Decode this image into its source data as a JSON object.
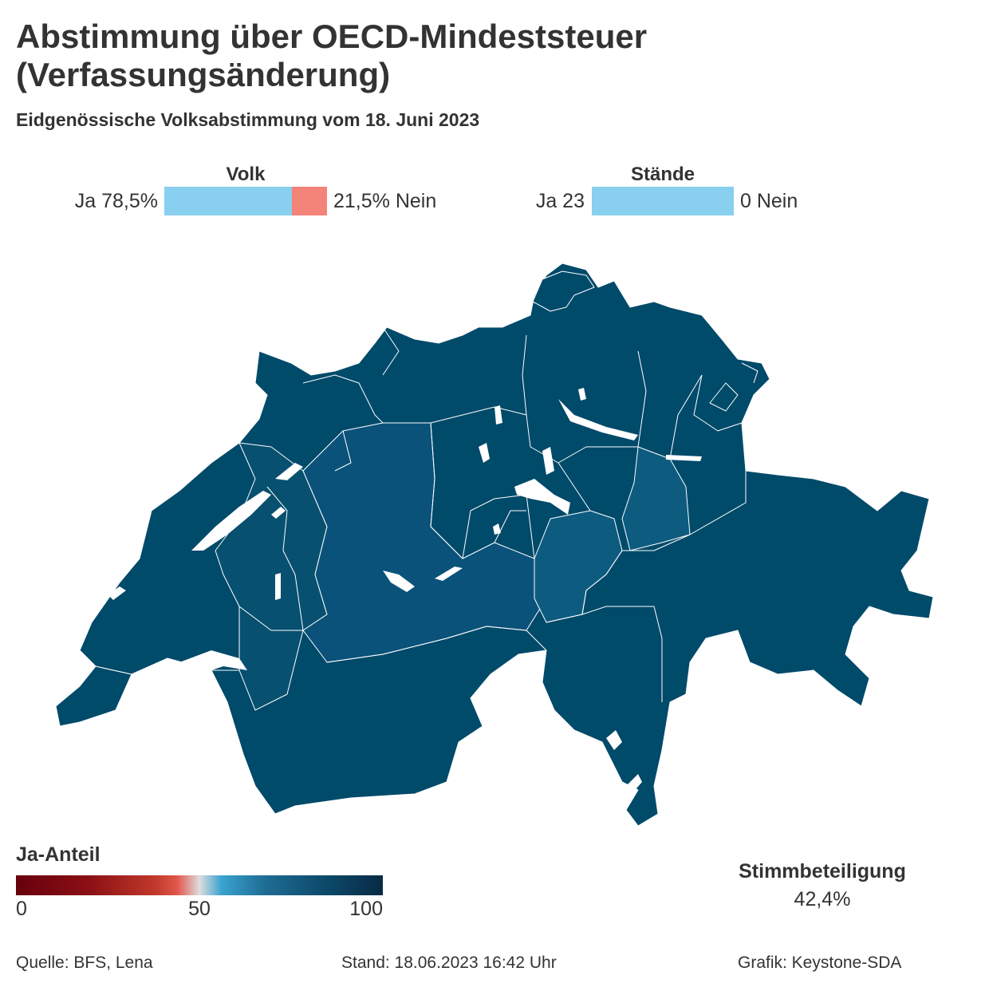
{
  "header": {
    "title": "Abstimmung über OECD-Mindeststeuer (Verfassungsänderung)",
    "subtitle": "Eidgenössische Volksabstimmung vom 18. Juni 2023"
  },
  "results": {
    "volk": {
      "heading": "Volk",
      "ja_label": "Ja 78,5%",
      "nein_label": "21,5% Nein",
      "ja_share": 78.5,
      "nein_share": 21.5
    },
    "staende": {
      "heading": "Stände",
      "ja_label": "Ja 23",
      "nein_label": "0 Nein",
      "ja_count": 23,
      "nein_count": 0
    }
  },
  "colors": {
    "ja": "#89cfef",
    "nein": "#f4837a",
    "map_dark": "#004a6a",
    "map_mid": "#08506f",
    "map_light": "#0e5b80",
    "lakes": "#ffffff"
  },
  "map": {
    "region": "Schweiz",
    "fill_scale": "Ja-Anteil"
  },
  "legend": {
    "title": "Ja-Anteil",
    "ticks": [
      "0",
      "50",
      "100"
    ],
    "range": [
      0,
      100
    ]
  },
  "turnout": {
    "label": "Stimmbeteiligung",
    "value": "42,4%"
  },
  "footer": {
    "source": "Quelle: BFS, Lena",
    "stand": "Stand: 18.06.2023 16:42 Uhr",
    "grafik": "Grafik: Keystone-SDA"
  }
}
